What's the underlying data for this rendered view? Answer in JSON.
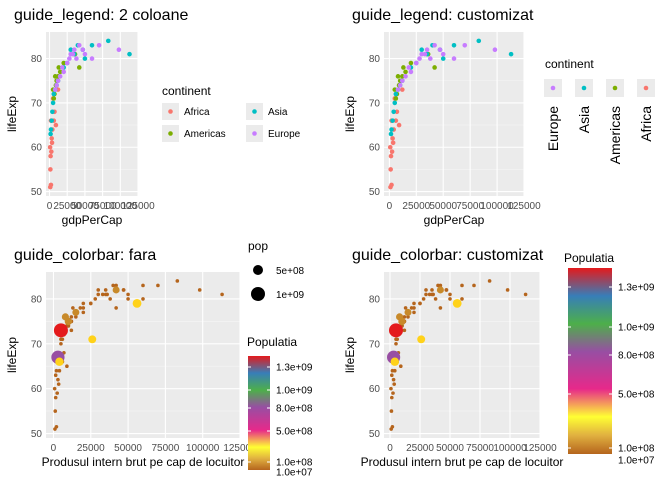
{
  "panels": [
    {
      "title": "guide_legend: 2 coloane",
      "xlabel": "gdpPerCap",
      "ylabel": "lifeExp",
      "legend": {
        "title": "continent",
        "entries": [
          "Africa",
          "Americas",
          "Asia",
          "Europe"
        ],
        "layout": "two-columns"
      }
    },
    {
      "title": "guide_legend: customizat",
      "xlabel": "gdpPerCap",
      "ylabel": "lifeExp",
      "legend": {
        "title": "continent",
        "entries": [
          "Europe",
          "Asia",
          "Americas",
          "Africa"
        ],
        "layout": "row-rotated-labels"
      }
    },
    {
      "title": "guide_colorbar: fara",
      "xlabel": "Produsul intern brut pe cap de locuitor",
      "ylabel": "lifeExp",
      "size_legend": {
        "title": "pop",
        "entries": [
          "5e+08",
          "1e+09"
        ]
      },
      "colorbar": {
        "title": "Populatia",
        "labels": [
          "1.3e+09",
          "1.0e+09",
          "8.0e+08",
          "5.0e+08",
          "1.0e+08",
          "1.0e+07"
        ]
      }
    },
    {
      "title": "guide_colorbar: customizat",
      "xlabel": "Produsul intern brut pe cap de locuitor",
      "ylabel": "lifeExp",
      "colorbar": {
        "title": "Populatia",
        "labels": [
          "1.3e+09",
          "1.0e+09",
          "8.0e+08",
          "5.0e+08",
          "1.0e+08",
          "1.0e+07"
        ]
      }
    }
  ],
  "colors": {
    "Africa": "#F8766D",
    "Americas": "#7CAE00",
    "Asia": "#00BFC4",
    "Europe": "#C77CFF",
    "panel_bg": "#EBEBEB",
    "grid": "#FFFFFF",
    "colorbar_stops": [
      "#B5651D",
      "#E8C91D",
      "#FFFF33",
      "#E7298A",
      "#984EA3",
      "#4DAF4A",
      "#377EB8",
      "#E41A1C"
    ]
  },
  "chart_data": [
    {
      "type": "scatter",
      "x_ticks": [
        "0",
        "25000",
        "50000",
        "75000",
        "100000",
        "125000"
      ],
      "y_ticks": [
        "50",
        "60",
        "70",
        "80"
      ],
      "xlim": [
        -5000,
        125000
      ],
      "ylim": [
        49,
        86
      ],
      "color_by": "continent",
      "series": [
        {
          "name": "Africa",
          "points": [
            [
              1000,
              51
            ],
            [
              2000,
              51.5
            ],
            [
              1500,
              58
            ],
            [
              2500,
              59
            ],
            [
              800,
              60
            ],
            [
              3000,
              62
            ],
            [
              4000,
              64
            ],
            [
              6000,
              66
            ],
            [
              9000,
              65
            ],
            [
              12000,
              73
            ],
            [
              5000,
              71
            ],
            [
              2000,
              66
            ],
            [
              1200,
              55
            ],
            [
              7000,
              68
            ],
            [
              3500,
              61
            ]
          ]
        },
        {
          "name": "Americas",
          "points": [
            [
              5000,
              73
            ],
            [
              8000,
              76
            ],
            [
              10000,
              75
            ],
            [
              13000,
              78
            ],
            [
              20000,
              79
            ],
            [
              36000,
              81
            ],
            [
              42000,
              78
            ],
            [
              7000,
              72
            ],
            [
              9000,
              74
            ],
            [
              12000,
              76
            ],
            [
              15000,
              77
            ],
            [
              6000,
              71
            ]
          ]
        },
        {
          "name": "Asia",
          "points": [
            [
              2000,
              64
            ],
            [
              3000,
              66
            ],
            [
              4000,
              68
            ],
            [
              5000,
              70
            ],
            [
              6000,
              72
            ],
            [
              10000,
              74
            ],
            [
              25000,
              79
            ],
            [
              30000,
              82
            ],
            [
              47000,
              82
            ],
            [
              50000,
              80
            ],
            [
              60000,
              83
            ],
            [
              83000,
              84
            ],
            [
              113000,
              81
            ],
            [
              1500,
              63
            ],
            [
              8000,
              73
            ],
            [
              12000,
              75
            ],
            [
              20000,
              78
            ],
            [
              35000,
              81
            ],
            [
              40000,
              83
            ]
          ]
        },
        {
          "name": "Europe",
          "points": [
            [
              10000,
              74
            ],
            [
              12000,
              75
            ],
            [
              15000,
              76
            ],
            [
              20000,
              77
            ],
            [
              25000,
              79
            ],
            [
              30000,
              81
            ],
            [
              35000,
              82
            ],
            [
              38000,
              80
            ],
            [
              42000,
              83
            ],
            [
              47000,
              82
            ],
            [
              50000,
              81
            ],
            [
              60000,
              80
            ],
            [
              70000,
              83
            ],
            [
              98000,
              82
            ],
            [
              18000,
              78
            ],
            [
              28000,
              80
            ],
            [
              33000,
              81
            ],
            [
              8000,
              73
            ]
          ]
        }
      ]
    },
    {
      "type": "scatter",
      "x_ticks": [
        "0",
        "25000",
        "50000",
        "75000",
        "100000",
        "125000"
      ],
      "y_ticks": [
        "50",
        "60",
        "70",
        "80"
      ],
      "xlim": [
        -5000,
        125000
      ],
      "ylim": [
        49,
        86
      ],
      "same_data_as": 0
    },
    {
      "type": "scatter",
      "x_ticks": [
        "0",
        "25000",
        "50000",
        "75000",
        "100000",
        "125000"
      ],
      "y_ticks": [
        "50",
        "60",
        "70",
        "80"
      ],
      "xlim": [
        -5000,
        125000
      ],
      "ylim": [
        49,
        86
      ],
      "size_by": "pop",
      "color_by": "pop",
      "big_points": [
        {
          "x": 5000,
          "y": 73,
          "pop": 1300000000
        },
        {
          "x": 3000,
          "y": 67,
          "pop": 1100000000
        },
        {
          "x": 56000,
          "y": 79,
          "pop": 300000000
        },
        {
          "x": 26000,
          "y": 71,
          "pop": 200000000
        },
        {
          "x": 10000,
          "y": 75,
          "pop": 150000000
        },
        {
          "x": 4000,
          "y": 66,
          "pop": 250000000
        },
        {
          "x": 8000,
          "y": 76,
          "pop": 130000000
        },
        {
          "x": 15000,
          "y": 77,
          "pop": 120000000
        },
        {
          "x": 42000,
          "y": 82,
          "pop": 120000000
        }
      ]
    },
    {
      "type": "scatter",
      "x_ticks": [
        "0",
        "25000",
        "50000",
        "75000",
        "100000",
        "125000"
      ],
      "y_ticks": [
        "50",
        "60",
        "70",
        "80"
      ],
      "xlim": [
        -5000,
        125000
      ],
      "ylim": [
        49,
        86
      ],
      "same_data_as": 2
    }
  ]
}
